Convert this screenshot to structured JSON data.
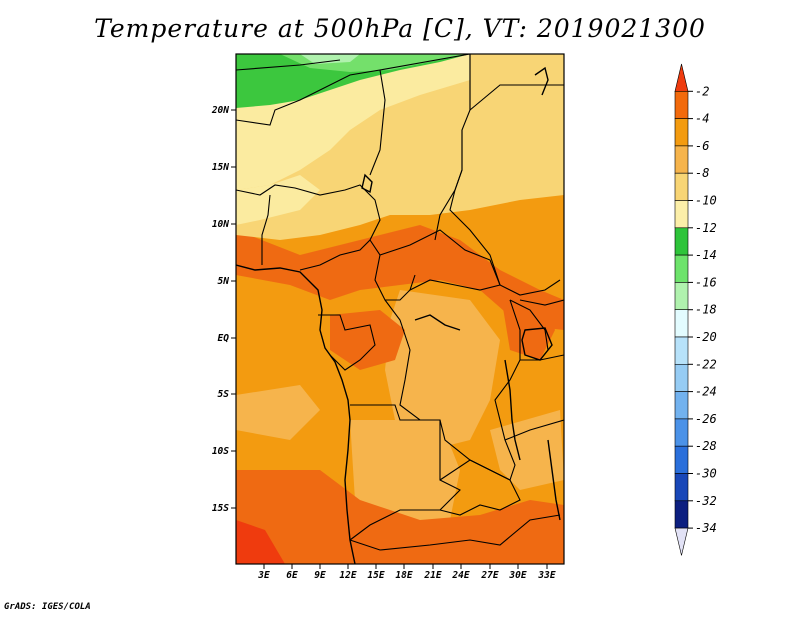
{
  "title": "Temperature at 500hPa [C], VT: 2019021300",
  "credit": "GrADS: IGES/COLA",
  "map": {
    "lat_labels": [
      "20N",
      "15N",
      "10N",
      "5N",
      "EQ",
      "5S",
      "10S",
      "15S"
    ],
    "lon_labels": [
      "3E",
      "6E",
      "9E",
      "12E",
      "15E",
      "18E",
      "21E",
      "24E",
      "27E",
      "30E",
      "33E"
    ]
  },
  "colorbar": {
    "levels": [
      "-2",
      "-4",
      "-6",
      "-8",
      "-10",
      "-12",
      "-14",
      "-16",
      "-18",
      "-20",
      "-22",
      "-24",
      "-26",
      "-28",
      "-30",
      "-32",
      "-34"
    ],
    "colors": [
      "#ef3b0e",
      "#f26a0c",
      "#f39b10",
      "#f6b44c",
      "#f8d575",
      "#fcefa9",
      "#2ec43a",
      "#6de36b",
      "#b0f2ae",
      "#e3fcff",
      "#b7e2fa",
      "#96ccf4",
      "#72b2ef",
      "#4b92e8",
      "#2a6fdb",
      "#1847b8",
      "#0c1f80",
      "#e2e2f6"
    ]
  },
  "regions": [
    {
      "name": "region-northwest-green",
      "color": "#3cc73e",
      "label": "-12 to -14"
    },
    {
      "name": "region-north-pale-yellow",
      "color": "#fbeba0",
      "label": "-10 to -12"
    },
    {
      "name": "region-sahel-yellow",
      "color": "#f8d575",
      "label": "-8 to -10"
    },
    {
      "name": "region-central-orange",
      "color": "#f39b10",
      "label": "-4 to -6"
    },
    {
      "name": "region-warm-patches",
      "color": "#ef6a12",
      "label": "-2 to -4"
    },
    {
      "name": "region-southwest-red",
      "color": "#ef3b0e",
      "label": "> -2"
    }
  ]
}
